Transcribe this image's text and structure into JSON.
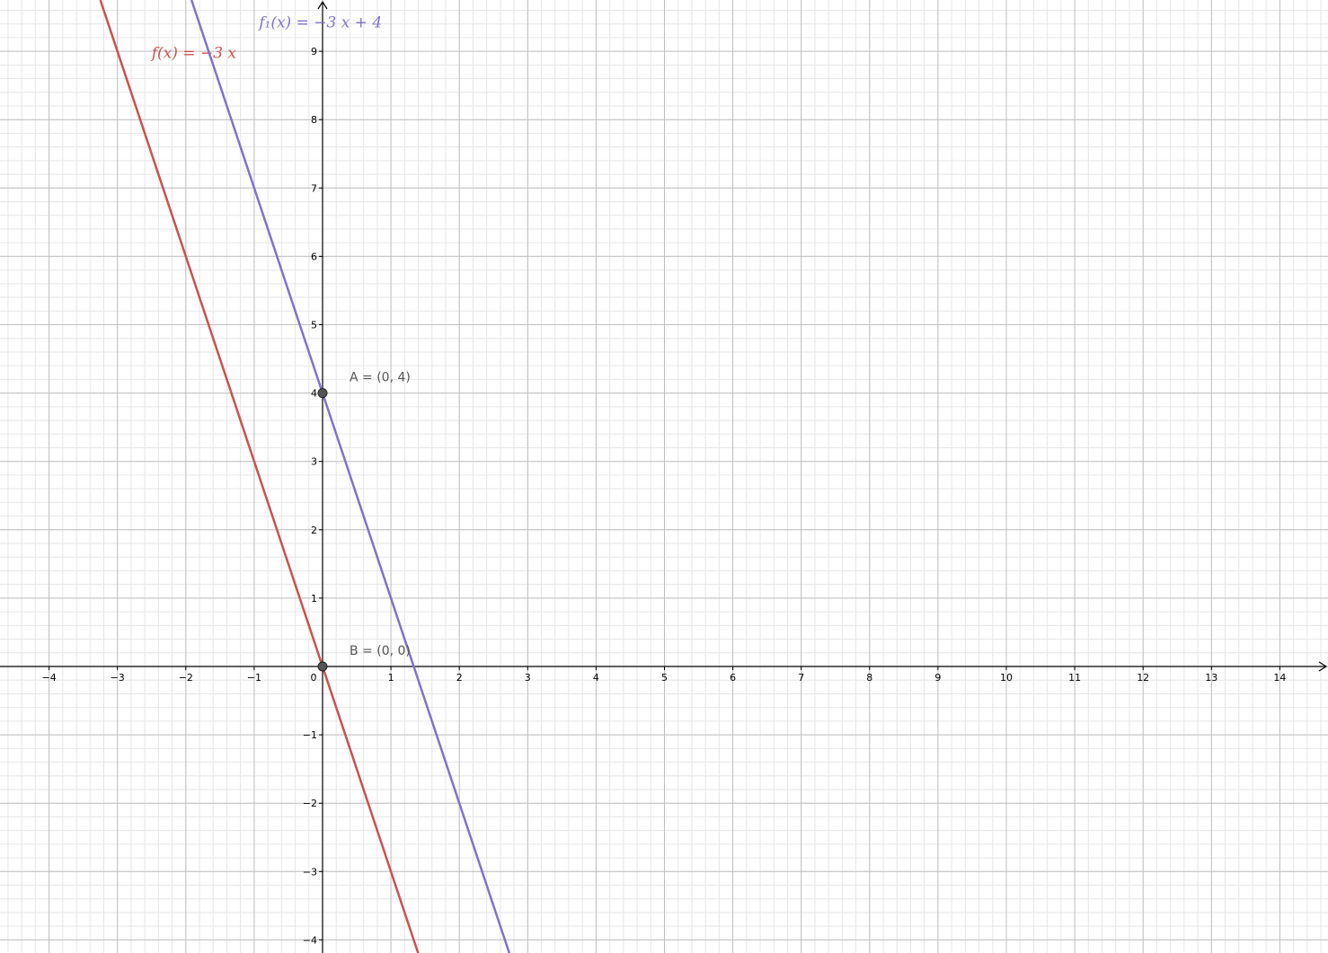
{
  "chart_data": {
    "type": "line",
    "title": "",
    "xlabel": "",
    "ylabel": "",
    "xlim": [
      -4.72,
      14.7
    ],
    "ylim": [
      -4.2,
      9.75
    ],
    "grid": true,
    "grid_major_step": 1,
    "grid_minor_step": 0.2,
    "x_ticks": [
      "−4",
      "−3",
      "−2",
      "−1",
      "0",
      "1",
      "2",
      "3",
      "4",
      "5",
      "6",
      "7",
      "8",
      "9",
      "10",
      "11",
      "12",
      "13",
      "14"
    ],
    "x_tick_values": [
      -4,
      -3,
      -2,
      -1,
      0,
      1,
      2,
      3,
      4,
      5,
      6,
      7,
      8,
      9,
      10,
      11,
      12,
      13,
      14
    ],
    "y_ticks": [
      "−4",
      "−3",
      "−2",
      "−1",
      "1",
      "2",
      "3",
      "4",
      "5",
      "6",
      "7",
      "8",
      "9"
    ],
    "y_tick_values": [
      -4,
      -3,
      -2,
      -1,
      1,
      2,
      3,
      4,
      5,
      6,
      7,
      8,
      9
    ],
    "series": [
      {
        "name": "f(x) = −3 x",
        "slope": -3,
        "intercept": 0,
        "color": "#cc5050",
        "label_x": -2.5,
        "label_y": 8.9
      },
      {
        "name": "f₁(x) = −3 x + 4",
        "slope": -3,
        "intercept": 4,
        "color": "#7f73c9",
        "label_x": -0.93,
        "label_y": 9.35
      }
    ],
    "points": [
      {
        "name": "A",
        "label": "A = (0, 4)",
        "x": 0,
        "y": 4
      },
      {
        "name": "B",
        "label": "B = (0, 0)",
        "x": 0,
        "y": 0
      }
    ],
    "point_color": "#555555",
    "axis_color": "#000000",
    "major_grid_color": "#c0c0c0",
    "minor_grid_color": "#e6e6e6"
  }
}
